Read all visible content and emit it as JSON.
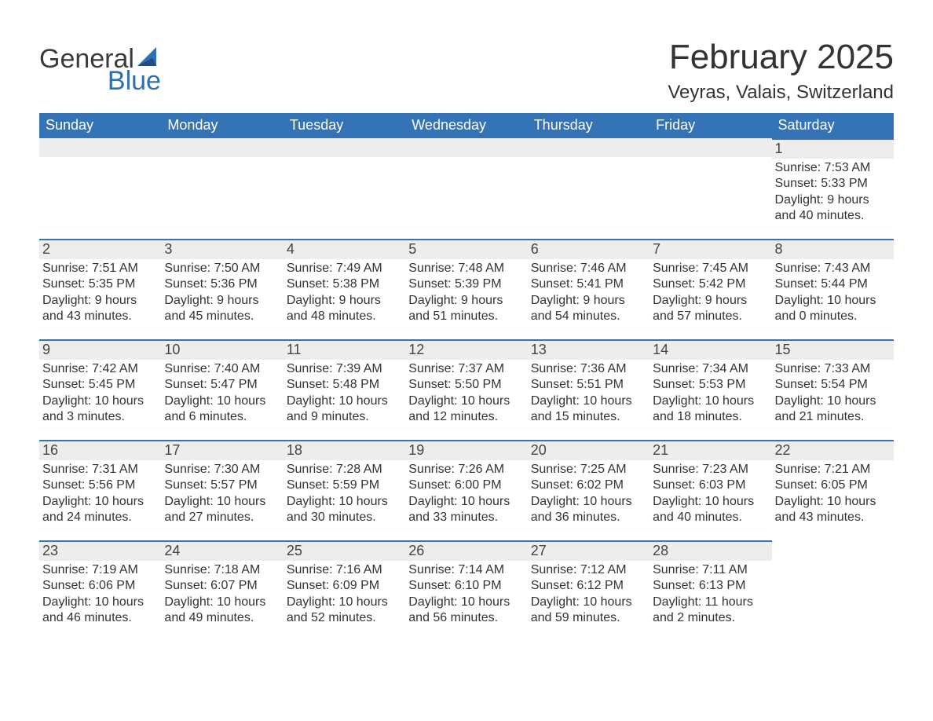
{
  "logo": {
    "line1": "General",
    "line2": "Blue",
    "sail_color": "#2f6fb4"
  },
  "title": "February 2025",
  "location": "Veyras, Valais, Switzerland",
  "colors": {
    "header_bg": "#3573b7",
    "header_text": "#ffffff",
    "daynum_bg": "#ededed",
    "day_border": "#3573b7",
    "body_text": "#333333"
  },
  "weekdays": [
    "Sunday",
    "Monday",
    "Tuesday",
    "Wednesday",
    "Thursday",
    "Friday",
    "Saturday"
  ],
  "weeks": [
    [
      null,
      null,
      null,
      null,
      null,
      null,
      {
        "n": "1",
        "sr": "Sunrise: 7:53 AM",
        "ss": "Sunset: 5:33 PM",
        "d1": "Daylight: 9 hours",
        "d2": "and 40 minutes."
      }
    ],
    [
      {
        "n": "2",
        "sr": "Sunrise: 7:51 AM",
        "ss": "Sunset: 5:35 PM",
        "d1": "Daylight: 9 hours",
        "d2": "and 43 minutes."
      },
      {
        "n": "3",
        "sr": "Sunrise: 7:50 AM",
        "ss": "Sunset: 5:36 PM",
        "d1": "Daylight: 9 hours",
        "d2": "and 45 minutes."
      },
      {
        "n": "4",
        "sr": "Sunrise: 7:49 AM",
        "ss": "Sunset: 5:38 PM",
        "d1": "Daylight: 9 hours",
        "d2": "and 48 minutes."
      },
      {
        "n": "5",
        "sr": "Sunrise: 7:48 AM",
        "ss": "Sunset: 5:39 PM",
        "d1": "Daylight: 9 hours",
        "d2": "and 51 minutes."
      },
      {
        "n": "6",
        "sr": "Sunrise: 7:46 AM",
        "ss": "Sunset: 5:41 PM",
        "d1": "Daylight: 9 hours",
        "d2": "and 54 minutes."
      },
      {
        "n": "7",
        "sr": "Sunrise: 7:45 AM",
        "ss": "Sunset: 5:42 PM",
        "d1": "Daylight: 9 hours",
        "d2": "and 57 minutes."
      },
      {
        "n": "8",
        "sr": "Sunrise: 7:43 AM",
        "ss": "Sunset: 5:44 PM",
        "d1": "Daylight: 10 hours",
        "d2": "and 0 minutes."
      }
    ],
    [
      {
        "n": "9",
        "sr": "Sunrise: 7:42 AM",
        "ss": "Sunset: 5:45 PM",
        "d1": "Daylight: 10 hours",
        "d2": "and 3 minutes."
      },
      {
        "n": "10",
        "sr": "Sunrise: 7:40 AM",
        "ss": "Sunset: 5:47 PM",
        "d1": "Daylight: 10 hours",
        "d2": "and 6 minutes."
      },
      {
        "n": "11",
        "sr": "Sunrise: 7:39 AM",
        "ss": "Sunset: 5:48 PM",
        "d1": "Daylight: 10 hours",
        "d2": "and 9 minutes."
      },
      {
        "n": "12",
        "sr": "Sunrise: 7:37 AM",
        "ss": "Sunset: 5:50 PM",
        "d1": "Daylight: 10 hours",
        "d2": "and 12 minutes."
      },
      {
        "n": "13",
        "sr": "Sunrise: 7:36 AM",
        "ss": "Sunset: 5:51 PM",
        "d1": "Daylight: 10 hours",
        "d2": "and 15 minutes."
      },
      {
        "n": "14",
        "sr": "Sunrise: 7:34 AM",
        "ss": "Sunset: 5:53 PM",
        "d1": "Daylight: 10 hours",
        "d2": "and 18 minutes."
      },
      {
        "n": "15",
        "sr": "Sunrise: 7:33 AM",
        "ss": "Sunset: 5:54 PM",
        "d1": "Daylight: 10 hours",
        "d2": "and 21 minutes."
      }
    ],
    [
      {
        "n": "16",
        "sr": "Sunrise: 7:31 AM",
        "ss": "Sunset: 5:56 PM",
        "d1": "Daylight: 10 hours",
        "d2": "and 24 minutes."
      },
      {
        "n": "17",
        "sr": "Sunrise: 7:30 AM",
        "ss": "Sunset: 5:57 PM",
        "d1": "Daylight: 10 hours",
        "d2": "and 27 minutes."
      },
      {
        "n": "18",
        "sr": "Sunrise: 7:28 AM",
        "ss": "Sunset: 5:59 PM",
        "d1": "Daylight: 10 hours",
        "d2": "and 30 minutes."
      },
      {
        "n": "19",
        "sr": "Sunrise: 7:26 AM",
        "ss": "Sunset: 6:00 PM",
        "d1": "Daylight: 10 hours",
        "d2": "and 33 minutes."
      },
      {
        "n": "20",
        "sr": "Sunrise: 7:25 AM",
        "ss": "Sunset: 6:02 PM",
        "d1": "Daylight: 10 hours",
        "d2": "and 36 minutes."
      },
      {
        "n": "21",
        "sr": "Sunrise: 7:23 AM",
        "ss": "Sunset: 6:03 PM",
        "d1": "Daylight: 10 hours",
        "d2": "and 40 minutes."
      },
      {
        "n": "22",
        "sr": "Sunrise: 7:21 AM",
        "ss": "Sunset: 6:05 PM",
        "d1": "Daylight: 10 hours",
        "d2": "and 43 minutes."
      }
    ],
    [
      {
        "n": "23",
        "sr": "Sunrise: 7:19 AM",
        "ss": "Sunset: 6:06 PM",
        "d1": "Daylight: 10 hours",
        "d2": "and 46 minutes."
      },
      {
        "n": "24",
        "sr": "Sunrise: 7:18 AM",
        "ss": "Sunset: 6:07 PM",
        "d1": "Daylight: 10 hours",
        "d2": "and 49 minutes."
      },
      {
        "n": "25",
        "sr": "Sunrise: 7:16 AM",
        "ss": "Sunset: 6:09 PM",
        "d1": "Daylight: 10 hours",
        "d2": "and 52 minutes."
      },
      {
        "n": "26",
        "sr": "Sunrise: 7:14 AM",
        "ss": "Sunset: 6:10 PM",
        "d1": "Daylight: 10 hours",
        "d2": "and 56 minutes."
      },
      {
        "n": "27",
        "sr": "Sunrise: 7:12 AM",
        "ss": "Sunset: 6:12 PM",
        "d1": "Daylight: 10 hours",
        "d2": "and 59 minutes."
      },
      {
        "n": "28",
        "sr": "Sunrise: 7:11 AM",
        "ss": "Sunset: 6:13 PM",
        "d1": "Daylight: 11 hours",
        "d2": "and 2 minutes."
      },
      null
    ]
  ]
}
